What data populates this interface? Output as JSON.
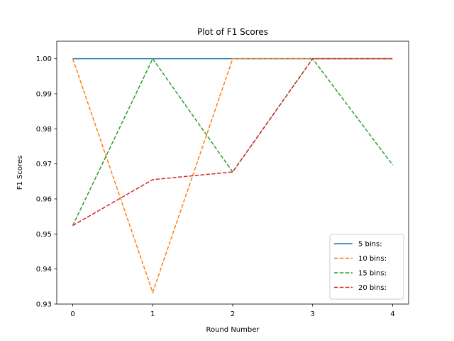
{
  "chart_data": {
    "type": "line",
    "title": "Plot of F1 Scores",
    "xlabel": "Round Number",
    "ylabel": "F1 Scores",
    "x": [
      0,
      1,
      2,
      3,
      4
    ],
    "xlim": [
      -0.2,
      4.2
    ],
    "ylim": [
      0.93,
      1.005
    ],
    "xticks": [
      "0",
      "1",
      "2",
      "3",
      "4"
    ],
    "yticks": [
      "0.93",
      "0.94",
      "0.95",
      "0.96",
      "0.97",
      "0.98",
      "0.99",
      "1.00"
    ],
    "grid": false,
    "legend_position": "lower-right",
    "series": [
      {
        "name": "5 bins:",
        "color": "#1f77b4",
        "dash": "solid",
        "values": [
          1.0,
          1.0,
          1.0,
          1.0,
          1.0
        ]
      },
      {
        "name": "10 bins:",
        "color": "#ff7f0e",
        "dash": "dashed",
        "values": [
          1.0,
          0.9333,
          1.0,
          1.0,
          1.0
        ]
      },
      {
        "name": "15 bins:",
        "color": "#2ca02c",
        "dash": "dashed",
        "values": [
          0.9524,
          1.0,
          0.9677,
          1.0,
          0.9697
        ]
      },
      {
        "name": "20 bins:",
        "color": "#d62728",
        "dash": "dashed",
        "values": [
          0.9524,
          0.9655,
          0.9677,
          1.0,
          1.0
        ]
      }
    ]
  }
}
